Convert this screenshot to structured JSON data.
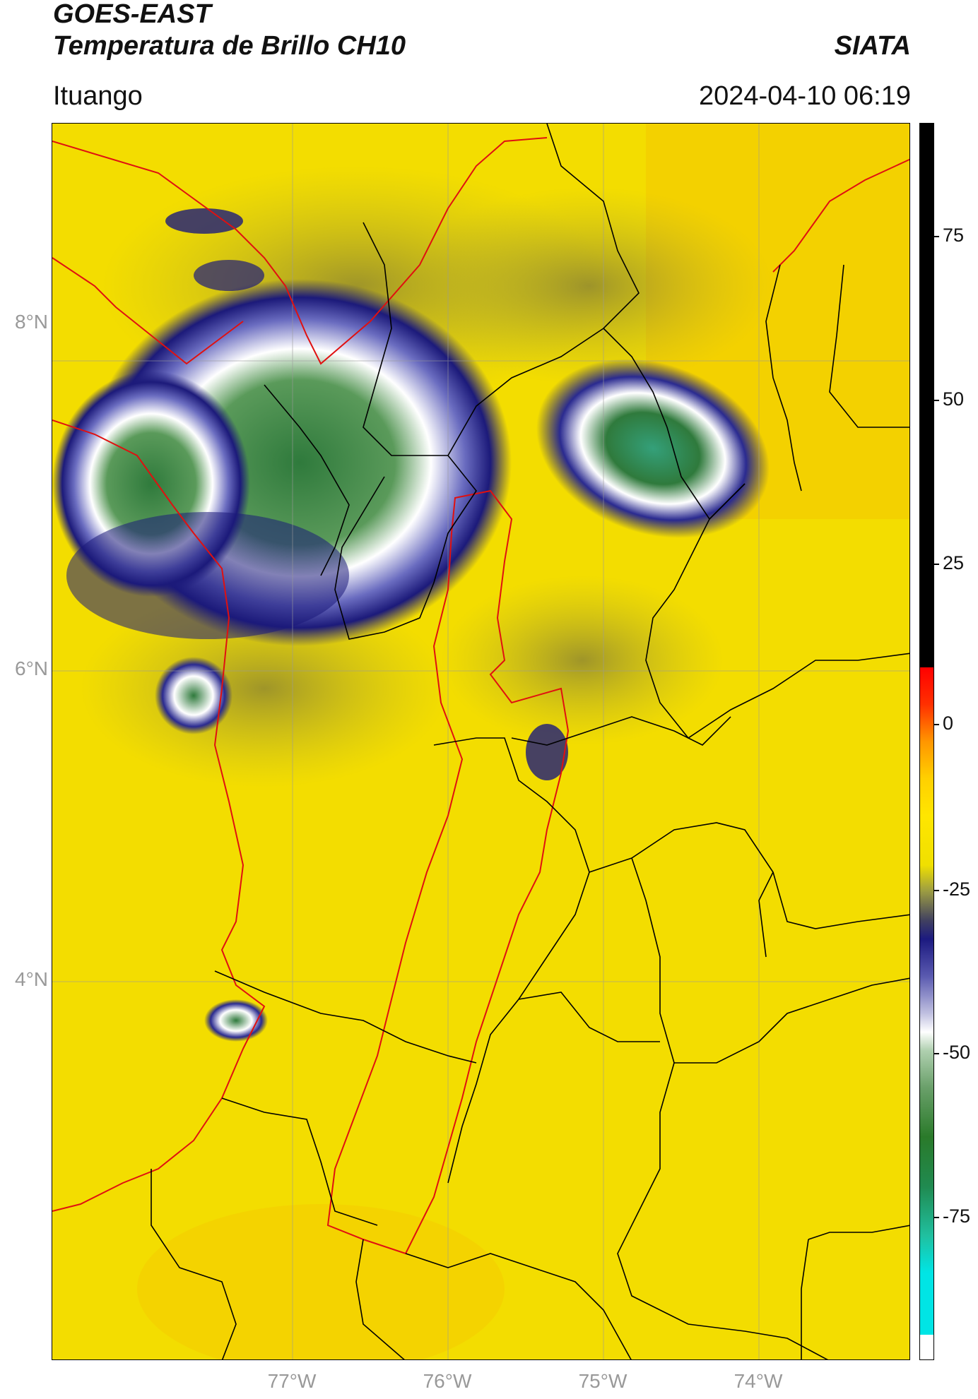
{
  "header": {
    "line1": "GOES-EAST",
    "line2": "Temperatura de Brillo CH10",
    "org": "SIATA",
    "region": "Ituango",
    "timestamp": "2024-04-10 06:19"
  },
  "map": {
    "lat_ticks": [
      "8°N",
      "6°N",
      "4°N"
    ],
    "lon_ticks": [
      "77°W",
      "76°W",
      "75°W",
      "74°W"
    ],
    "background_color": "#f2e400",
    "cold_cloud_colors": [
      "#1c1a7a",
      "#ffffff",
      "#2f7a3c"
    ],
    "border_colors": {
      "international": "#e01010",
      "department": "#000000"
    }
  },
  "colorbar": {
    "ticks": [
      "75",
      "50",
      "25",
      "0",
      "-25",
      "-50",
      "-75"
    ],
    "colors": {
      "warm_top": "#000000",
      "red": "#ff0000",
      "orange": "#ff9600",
      "yellow": "#ffe600",
      "navy": "#1c1a80",
      "white": "#ffffff",
      "green": "#2a7a2a",
      "teal": "#20c0a0",
      "cyan": "#00e5e5"
    }
  }
}
